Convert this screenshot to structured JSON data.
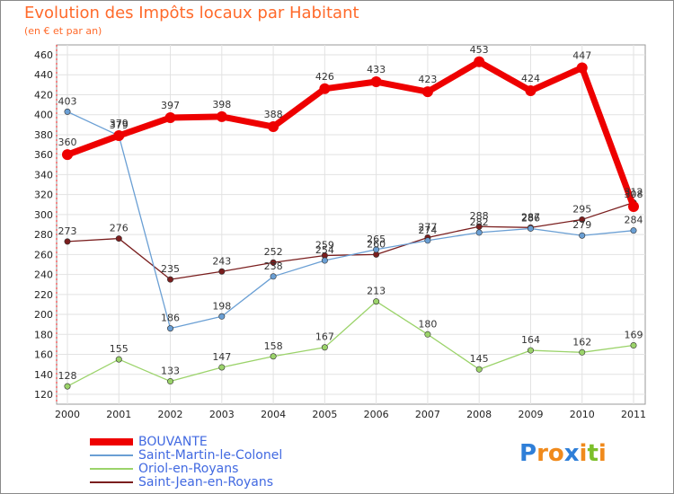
{
  "header": {
    "title": "Evolution des Impôts locaux par Habitant",
    "subtitle": "(en € et par an)"
  },
  "logo": {
    "text": "Proxiti",
    "letters": [
      "P",
      "r",
      "o",
      "x",
      "i",
      "t",
      "i"
    ],
    "colors": [
      "#2f7fd8",
      "#f08a1c",
      "#f08a1c",
      "#2f7fd8",
      "#f08a1c",
      "#7cbf2a",
      "#f08a1c"
    ]
  },
  "chart_data": {
    "type": "line",
    "title": "Evolution des Impôts locaux par Habitant",
    "subtitle": "(en € et par an)",
    "xlabel": "",
    "ylabel": "",
    "x": [
      "2000",
      "2001",
      "2002",
      "2003",
      "2004",
      "2005",
      "2006",
      "2007",
      "2008",
      "2009",
      "2010",
      "2011"
    ],
    "ylim": [
      120,
      460
    ],
    "yticks": [
      120,
      140,
      160,
      180,
      200,
      220,
      240,
      260,
      280,
      300,
      320,
      340,
      360,
      380,
      400,
      420,
      440,
      460
    ],
    "grid": true,
    "legend_position": "bottom-left",
    "series": [
      {
        "name": "BOUVANTE",
        "color": "#ee0000",
        "emphasis": true,
        "values": [
          360,
          379,
          397,
          398,
          388,
          426,
          433,
          423,
          453,
          424,
          447,
          308
        ]
      },
      {
        "name": "Saint-Martin-le-Colonel",
        "color": "#6a9fd4",
        "emphasis": false,
        "values": [
          403,
          379,
          186,
          198,
          238,
          254,
          265,
          274,
          282,
          286,
          279,
          284
        ]
      },
      {
        "name": "Oriol-en-Royans",
        "color": "#9bd36a",
        "emphasis": false,
        "values": [
          128,
          155,
          133,
          147,
          158,
          167,
          213,
          180,
          145,
          164,
          162,
          169
        ]
      },
      {
        "name": "Saint-Jean-en-Royans",
        "color": "#7a1e1e",
        "emphasis": false,
        "values": [
          273,
          276,
          235,
          243,
          252,
          259,
          260,
          277,
          288,
          287,
          295,
          312
        ]
      }
    ]
  }
}
